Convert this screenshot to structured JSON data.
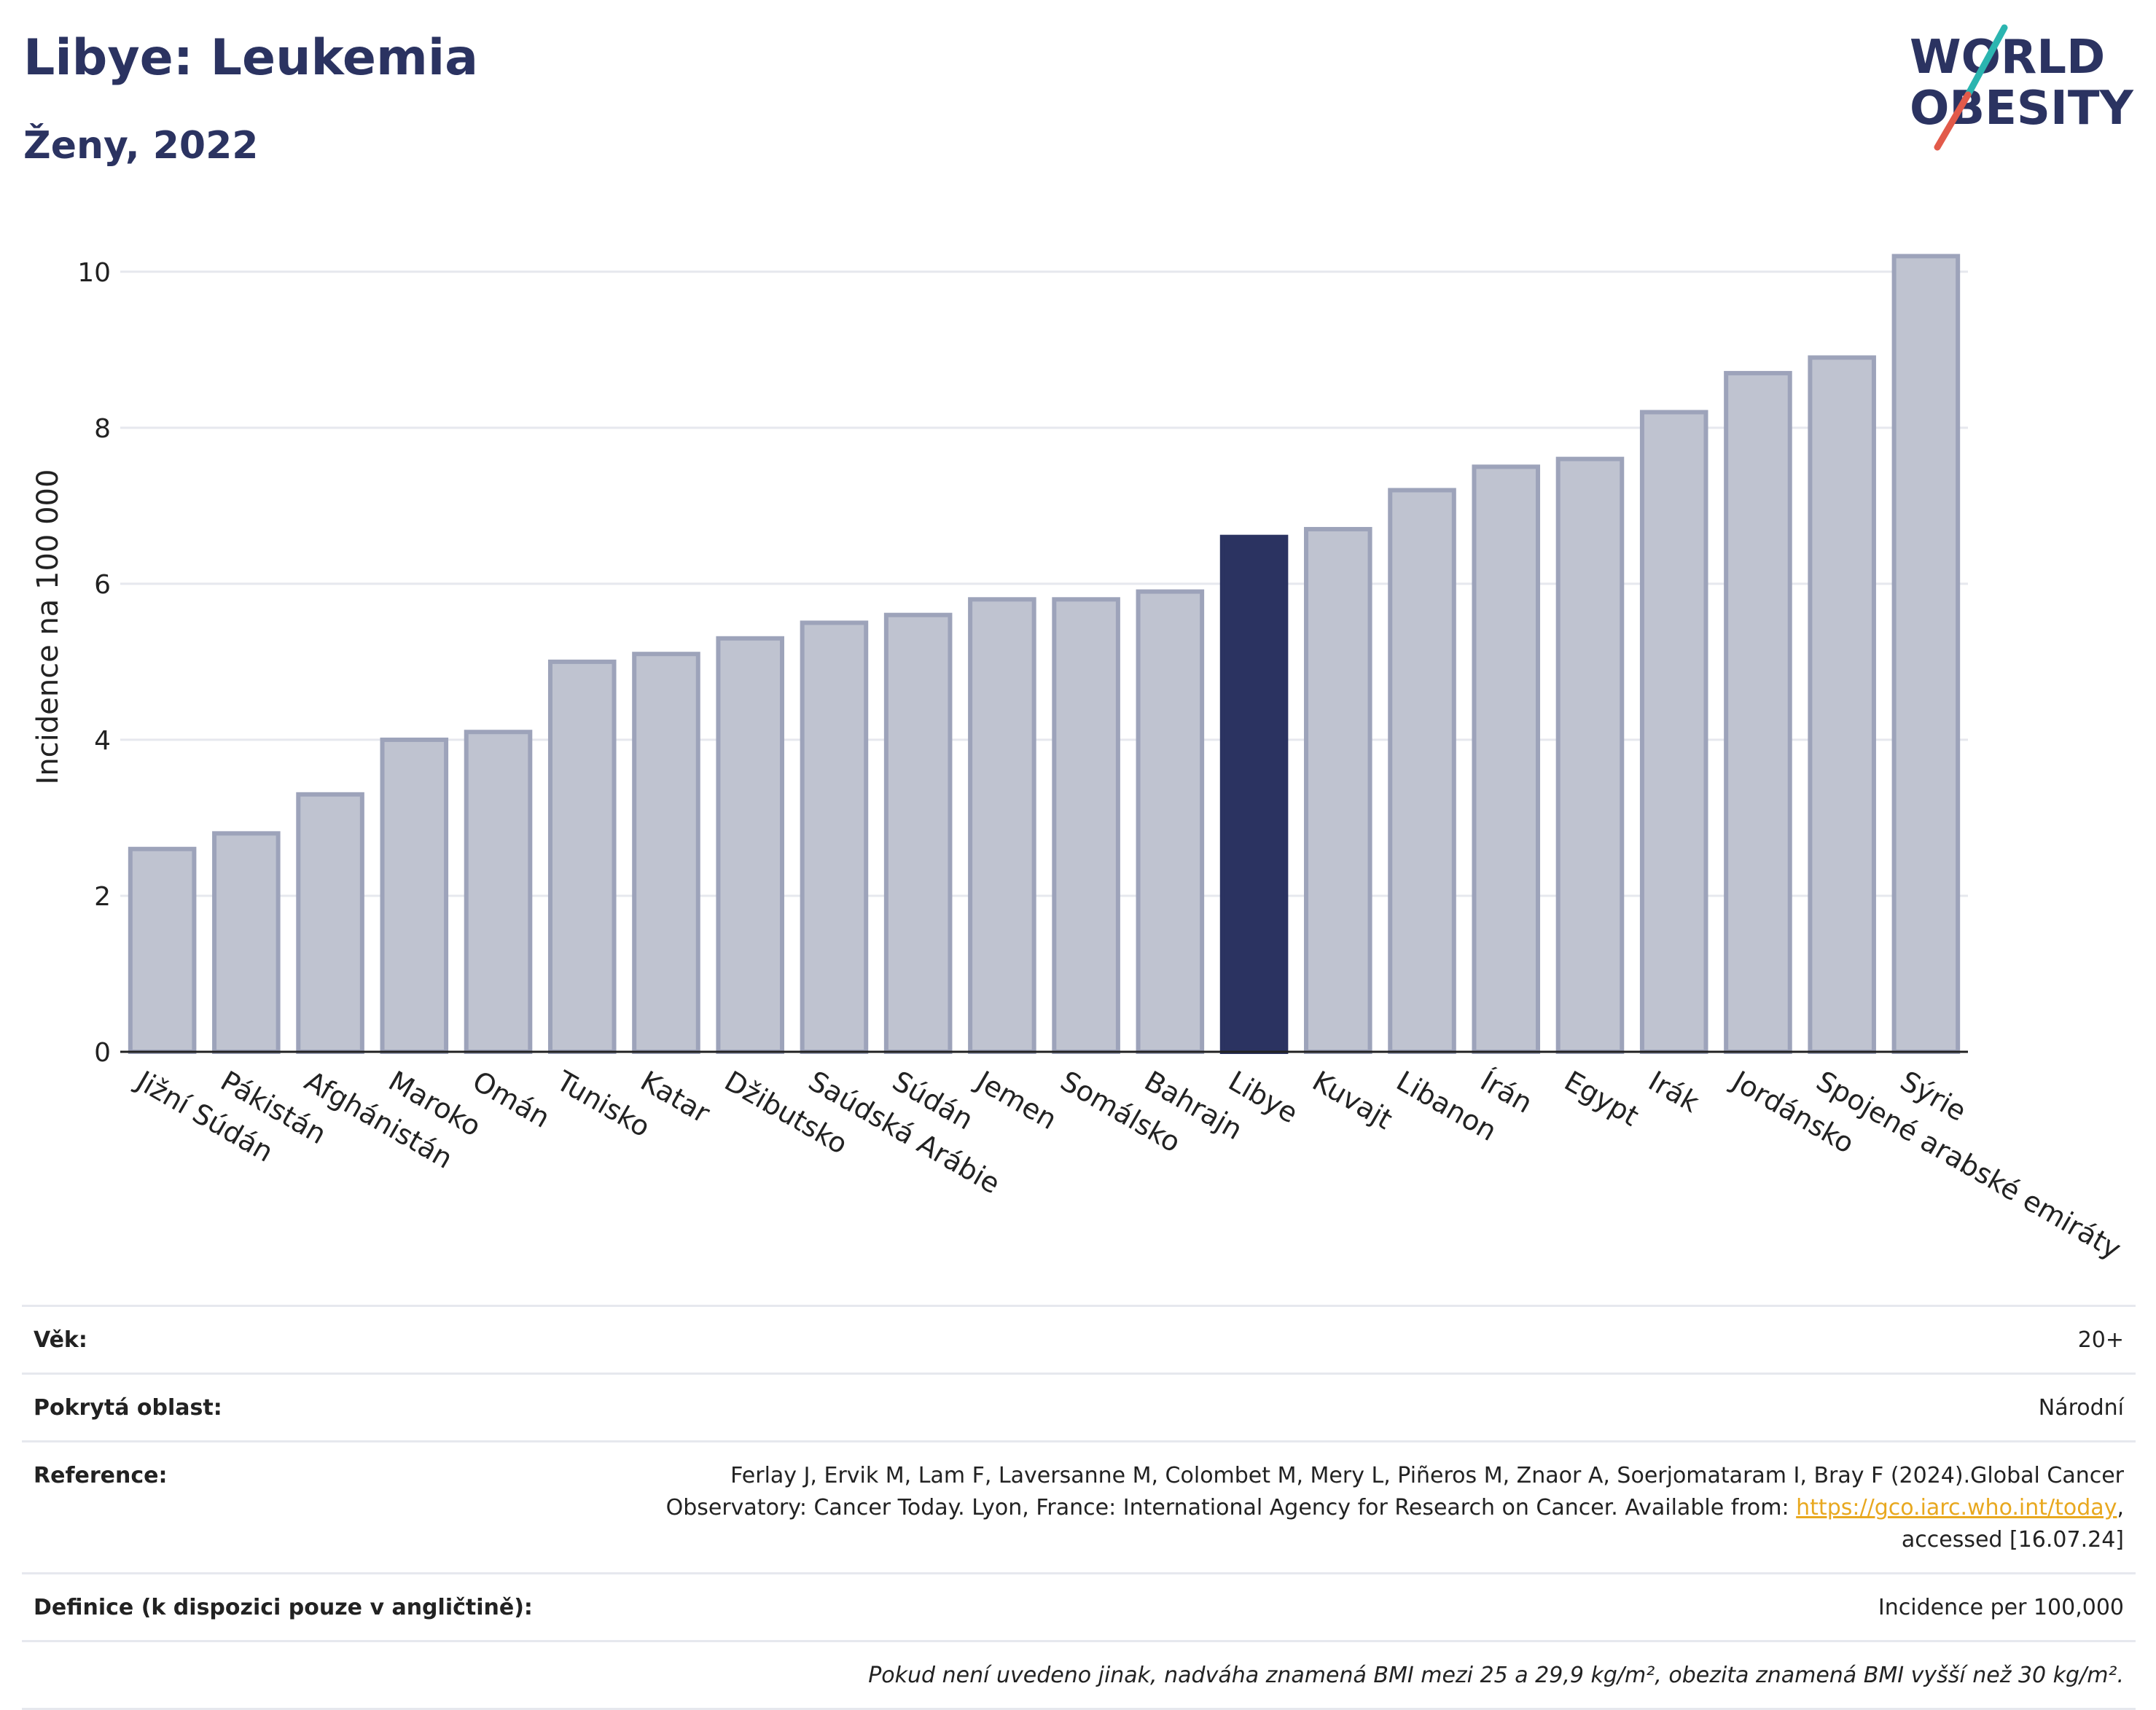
{
  "title": "Libye: Leukemia",
  "subtitle": "Ženy, 2022",
  "logo": {
    "line1": "WORLD",
    "line2": "OBESITY",
    "colors": {
      "text": "#2b3361",
      "slash_teal": "#2bb5b0",
      "slash_red": "#e25a4a"
    }
  },
  "colors": {
    "bar_default": "#bfc3d0",
    "bar_border": "#9da3ba",
    "bar_highlight": "#2b3361",
    "grid": "#e6e8ee",
    "axis": "#222222"
  },
  "chart_data": {
    "type": "bar",
    "title": "Libye: Leukemia",
    "subtitle": "Ženy, 2022",
    "xlabel": "",
    "ylabel": "Incidence na 100 000",
    "ylim": [
      0,
      10.4
    ],
    "yticks": [
      0,
      2,
      4,
      6,
      8,
      10
    ],
    "grid": true,
    "highlight": "Libye",
    "categories": [
      "Jižní Súdán",
      "Pákistán",
      "Afghánistán",
      "Maroko",
      "Omán",
      "Tunisko",
      "Katar",
      "Džibutsko",
      "Saúdská Arábie",
      "Súdán",
      "Jemen",
      "Somálsko",
      "Bahrajn",
      "Libye",
      "Kuvajt",
      "Libanon",
      "Írán",
      "Egypt",
      "Irák",
      "Jordánsko",
      "Spojené arabské emiráty",
      "Sýrie"
    ],
    "values": [
      2.6,
      2.8,
      3.3,
      4.0,
      4.1,
      5.0,
      5.1,
      5.3,
      5.5,
      5.6,
      5.8,
      5.8,
      5.9,
      6.6,
      6.7,
      7.2,
      7.5,
      7.6,
      8.2,
      8.7,
      8.9,
      10.2
    ]
  },
  "info": {
    "age": {
      "label": "Věk:",
      "value": "20+"
    },
    "coverage": {
      "label": "Pokrytá oblast:",
      "value": "Národní"
    },
    "reference": {
      "label": "Reference:",
      "text1": "Ferlay J, Ervik M, Lam F, Laversanne M, Colombet M, Mery L, Piñeros M, Znaor A, Soerjomataram I, Bray F (2024).Global Cancer",
      "text2": "Observatory: Cancer Today. Lyon, France: International Agency for Research on Cancer. Available from: ",
      "link": "https://gco.iarc.who.int/today",
      "text3": ",",
      "text4": "accessed [16.07.24]"
    },
    "definition": {
      "label": "Definice (k dispozici pouze v angličtině):",
      "value": "Incidence per 100,000"
    },
    "note": "Pokud není uvedeno jinak, nadváha znamená BMI mezi 25 a 29,9 kg/m², obezita znamená BMI vyšší než 30 kg/m²."
  }
}
